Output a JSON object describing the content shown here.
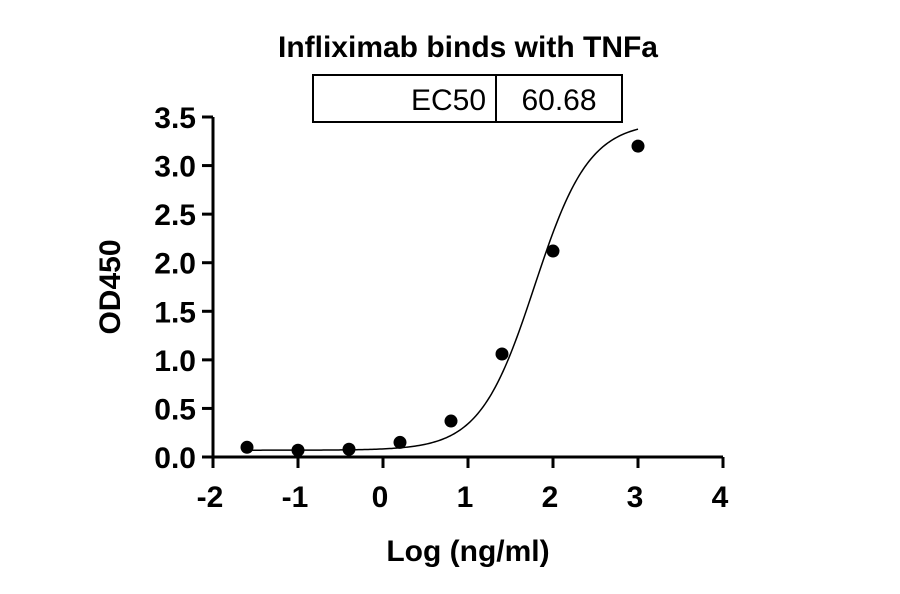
{
  "chart_data": {
    "type": "scatter",
    "title": "Infliximab binds with TNFa",
    "xlabel": "Log (ng/ml)",
    "ylabel": "OD450",
    "xlim": [
      -2,
      4
    ],
    "ylim": [
      0,
      3.5
    ],
    "x_ticks": [
      "-2",
      "-1",
      "0",
      "1",
      "2",
      "3",
      "4"
    ],
    "y_ticks": [
      "0.0",
      "0.5",
      "1.0",
      "1.5",
      "2.0",
      "2.5",
      "3.0",
      "3.5"
    ],
    "grid": false,
    "legend": "none",
    "series": [
      {
        "points": [
          {
            "x": -1.6,
            "y": 0.1
          },
          {
            "x": -1.0,
            "y": 0.07
          },
          {
            "x": -0.4,
            "y": 0.08
          },
          {
            "x": 0.2,
            "y": 0.15
          },
          {
            "x": 0.8,
            "y": 0.37
          },
          {
            "x": 1.4,
            "y": 1.06
          },
          {
            "x": 2.0,
            "y": 2.12
          },
          {
            "x": 3.0,
            "y": 3.2
          }
        ]
      }
    ],
    "fit_curve": {
      "model": "4PL",
      "bottom": 0.07,
      "top": 3.45,
      "log_ec50": 1.783,
      "hill_slope": 1.35
    },
    "table": {
      "label": "EC50",
      "value": "60.68"
    },
    "colors": {
      "marker": "#000000",
      "line": "#000000"
    }
  }
}
